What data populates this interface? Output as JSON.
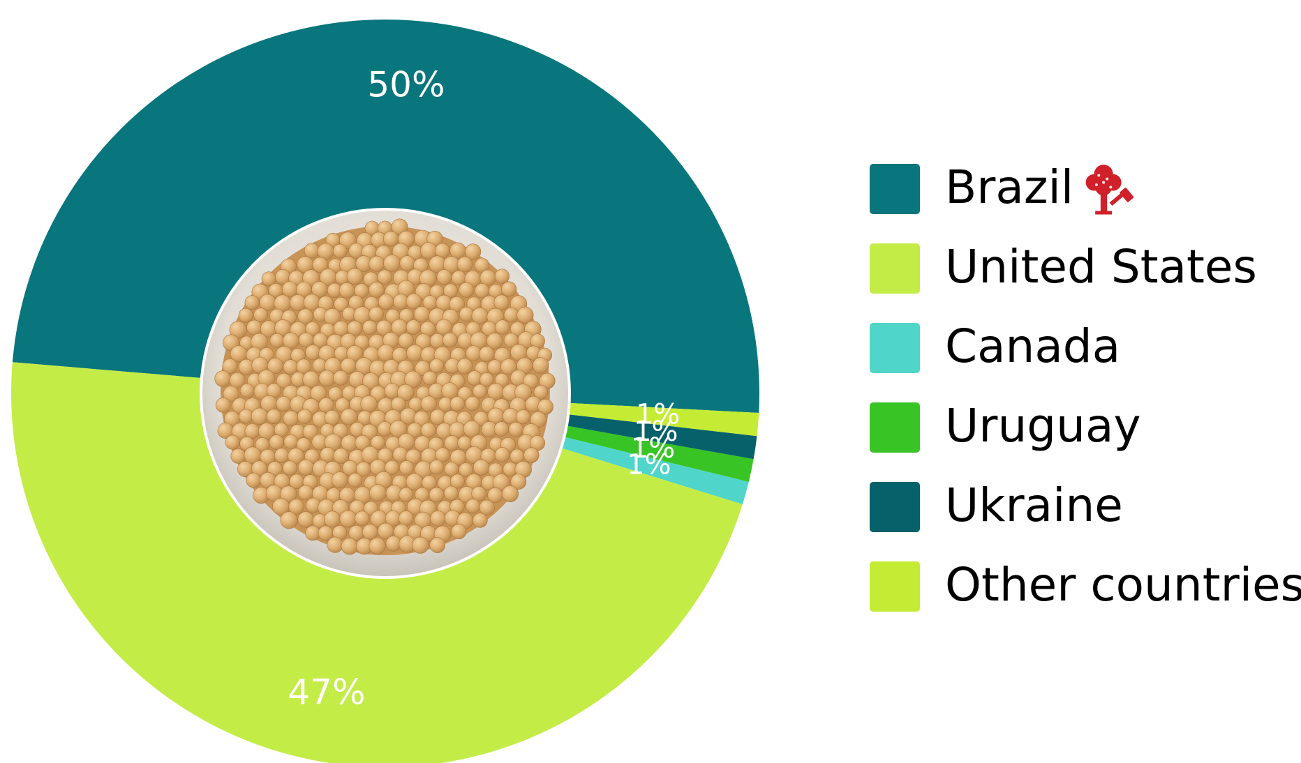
{
  "chart_data": {
    "type": "pie",
    "style": "donut",
    "center_image": "bowl-of-soybeans",
    "legend_position": "right",
    "slices": [
      {
        "label": "Brazil",
        "value": 50,
        "display": "50%",
        "color": "#08767c",
        "icon": "tree-hammer-icon",
        "icon_color": "#d0202a"
      },
      {
        "label": "United States",
        "value": 47,
        "display": "47%",
        "color": "#c4ec47"
      },
      {
        "label": "Canada",
        "value": 1,
        "display": "1%",
        "color": "#4fd5c9"
      },
      {
        "label": "Uruguay",
        "value": 1,
        "display": "1%",
        "color": "#38c425"
      },
      {
        "label": "Ukraine",
        "value": 1,
        "display": "1%",
        "color": "#06616a"
      },
      {
        "label": "Other countries",
        "value": 1,
        "display": "1%",
        "color": "#c4ec34"
      }
    ]
  }
}
